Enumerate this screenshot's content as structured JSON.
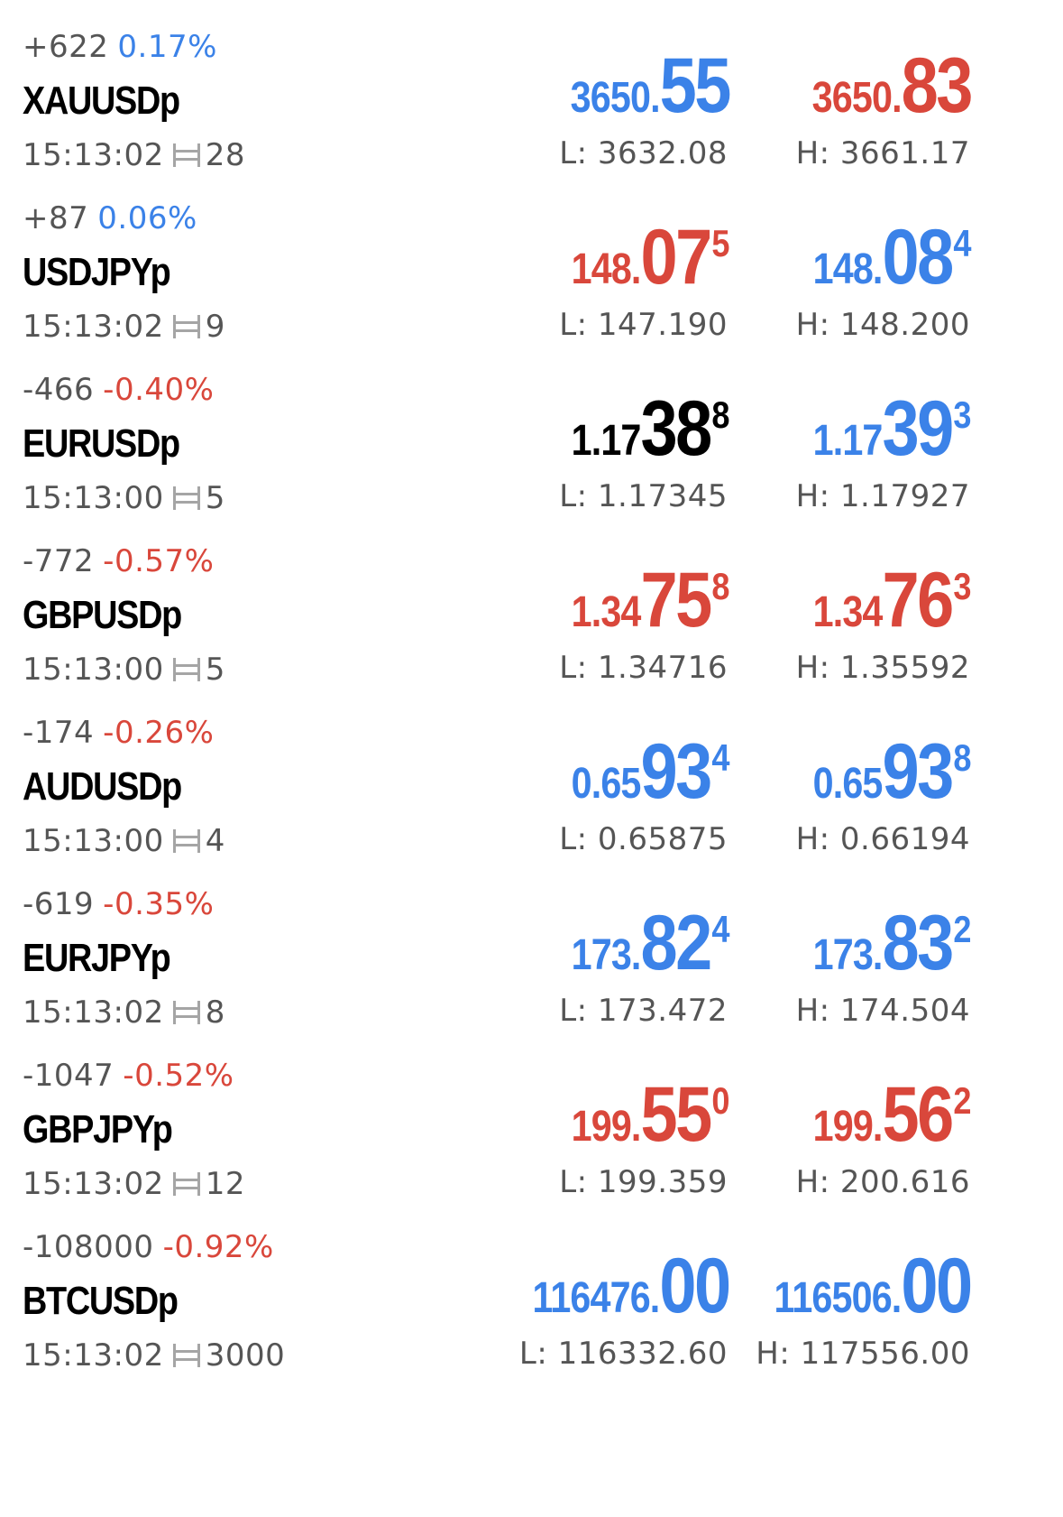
{
  "quotes": [
    {
      "change_points": "+622",
      "change_pct": "0.17%",
      "pct_direction": "up",
      "symbol": "XAUUSDp",
      "time": "15:13:02",
      "spread": "28",
      "bid": {
        "small": "3650.",
        "big": "55",
        "sup": "",
        "color": "blue"
      },
      "ask": {
        "small": "3650.",
        "big": "83",
        "sup": "",
        "color": "red"
      },
      "low": "L: 3632.08",
      "high": "H: 3661.17"
    },
    {
      "change_points": "+87",
      "change_pct": "0.06%",
      "pct_direction": "up",
      "symbol": "USDJPYp",
      "time": "15:13:02",
      "spread": "9",
      "bid": {
        "small": "148.",
        "big": "07",
        "sup": "5",
        "color": "red"
      },
      "ask": {
        "small": "148.",
        "big": "08",
        "sup": "4",
        "color": "blue"
      },
      "low": "L: 147.190",
      "high": "H: 148.200"
    },
    {
      "change_points": "-466",
      "change_pct": "-0.40%",
      "pct_direction": "down",
      "symbol": "EURUSDp",
      "time": "15:13:00",
      "spread": "5",
      "bid": {
        "small": "1.17",
        "big": "38",
        "sup": "8",
        "color": "black"
      },
      "ask": {
        "small": "1.17",
        "big": "39",
        "sup": "3",
        "color": "blue"
      },
      "low": "L: 1.17345",
      "high": "H: 1.17927"
    },
    {
      "change_points": "-772",
      "change_pct": "-0.57%",
      "pct_direction": "down",
      "symbol": "GBPUSDp",
      "time": "15:13:00",
      "spread": "5",
      "bid": {
        "small": "1.34",
        "big": "75",
        "sup": "8",
        "color": "red"
      },
      "ask": {
        "small": "1.34",
        "big": "76",
        "sup": "3",
        "color": "red"
      },
      "low": "L: 1.34716",
      "high": "H: 1.35592"
    },
    {
      "change_points": "-174",
      "change_pct": "-0.26%",
      "pct_direction": "down",
      "symbol": "AUDUSDp",
      "time": "15:13:00",
      "spread": "4",
      "bid": {
        "small": "0.65",
        "big": "93",
        "sup": "4",
        "color": "blue"
      },
      "ask": {
        "small": "0.65",
        "big": "93",
        "sup": "8",
        "color": "blue"
      },
      "low": "L: 0.65875",
      "high": "H: 0.66194"
    },
    {
      "change_points": "-619",
      "change_pct": "-0.35%",
      "pct_direction": "down",
      "symbol": "EURJPYp",
      "time": "15:13:02",
      "spread": "8",
      "bid": {
        "small": "173.",
        "big": "82",
        "sup": "4",
        "color": "blue"
      },
      "ask": {
        "small": "173.",
        "big": "83",
        "sup": "2",
        "color": "blue"
      },
      "low": "L: 173.472",
      "high": "H: 174.504"
    },
    {
      "change_points": "-1047",
      "change_pct": "-0.52%",
      "pct_direction": "down",
      "symbol": "GBPJPYp",
      "time": "15:13:02",
      "spread": "12",
      "bid": {
        "small": "199.",
        "big": "55",
        "sup": "0",
        "color": "red"
      },
      "ask": {
        "small": "199.",
        "big": "56",
        "sup": "2",
        "color": "red"
      },
      "low": "L: 199.359",
      "high": "H: 200.616"
    },
    {
      "change_points": "-108000",
      "change_pct": "-0.92%",
      "pct_direction": "down",
      "symbol": "BTCUSDp",
      "time": "15:13:02",
      "spread": "3000",
      "bid": {
        "small": "116476.",
        "big": "00",
        "sup": "",
        "color": "blue"
      },
      "ask": {
        "small": "116506.",
        "big": "00",
        "sup": "",
        "color": "blue"
      },
      "low": "L: 116332.60",
      "high": "H: 117556.00"
    }
  ],
  "icons": {
    "spread": "spread-icon"
  },
  "colors": {
    "up": "#3b82e8",
    "down": "#d9473b",
    "neutral": "#000000",
    "secondary_text": "#555555"
  }
}
